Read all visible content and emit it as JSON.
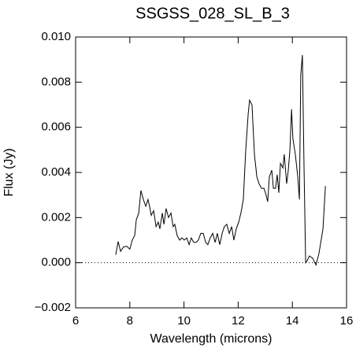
{
  "chart_data": {
    "type": "line",
    "title": "SSGSS_028_SL_B_3",
    "x_label": "Wavelength (microns)",
    "y_label": "Flux (Jy)",
    "xlim": [
      6,
      16
    ],
    "ylim": [
      -0.002,
      0.01
    ],
    "xticks": [
      6,
      8,
      10,
      12,
      14,
      16
    ],
    "yticks": [
      {
        "value": -0.002,
        "label": "−0.002"
      },
      {
        "value": 0,
        "label": "0.000"
      },
      {
        "value": 0.002,
        "label": "0.002"
      },
      {
        "value": 0.004,
        "label": "0.004"
      },
      {
        "value": 0.006,
        "label": "0.006"
      },
      {
        "value": 0.008,
        "label": "0.008"
      },
      {
        "value": 0.01,
        "label": "0.010"
      }
    ],
    "reference_line": 0,
    "color": "#000000",
    "x": [
      7.48,
      7.57,
      7.66,
      7.77,
      7.89,
      8.0,
      8.09,
      8.18,
      8.24,
      8.33,
      8.41,
      8.5,
      8.59,
      8.67,
      8.73,
      8.79,
      8.88,
      8.97,
      9.05,
      9.11,
      9.2,
      9.26,
      9.34,
      9.43,
      9.52,
      9.6,
      9.66,
      9.75,
      9.84,
      9.92,
      10.01,
      10.1,
      10.19,
      10.27,
      10.36,
      10.45,
      10.53,
      10.62,
      10.71,
      10.8,
      10.88,
      10.97,
      11.06,
      11.15,
      11.23,
      11.32,
      11.41,
      11.49,
      11.58,
      11.67,
      11.76,
      11.84,
      11.93,
      12.02,
      12.1,
      12.19,
      12.28,
      12.37,
      12.42,
      12.51,
      12.6,
      12.69,
      12.77,
      12.86,
      12.95,
      13.03,
      13.09,
      13.15,
      13.24,
      13.3,
      13.38,
      13.44,
      13.5,
      13.56,
      13.65,
      13.7,
      13.79,
      13.85,
      13.91,
      13.97,
      14.02,
      14.11,
      14.2,
      14.26,
      14.31,
      14.37,
      14.43,
      14.49,
      14.55,
      14.63,
      14.75,
      14.87,
      14.98,
      15.13,
      15.22
    ],
    "values": [
      0.00035,
      0.00094,
      0.0005,
      0.0007,
      0.00073,
      0.0006,
      0.001,
      0.0012,
      0.0019,
      0.0022,
      0.0032,
      0.0028,
      0.0025,
      0.0028,
      0.0025,
      0.0021,
      0.0023,
      0.0016,
      0.0018,
      0.0015,
      0.0022,
      0.0017,
      0.0024,
      0.002,
      0.0022,
      0.0016,
      0.0017,
      0.0012,
      0.001,
      0.0011,
      0.001,
      0.0011,
      0.0008,
      0.0011,
      0.0009,
      0.0009,
      0.001,
      0.0013,
      0.0013,
      0.0009,
      0.0008,
      0.0011,
      0.0013,
      0.0009,
      0.0013,
      0.0008,
      0.0013,
      0.0016,
      0.0017,
      0.0013,
      0.0016,
      0.001,
      0.0015,
      0.0018,
      0.0022,
      0.0028,
      0.005,
      0.0066,
      0.0072,
      0.007,
      0.0048,
      0.0038,
      0.0035,
      0.0033,
      0.0033,
      0.003,
      0.0027,
      0.0038,
      0.0041,
      0.0033,
      0.0033,
      0.0039,
      0.0031,
      0.0044,
      0.0042,
      0.0048,
      0.0035,
      0.0041,
      0.005,
      0.0068,
      0.0055,
      0.0048,
      0.0038,
      0.0028,
      0.0083,
      0.0092,
      0.0043,
      0.0,
      0.0001,
      0.0003,
      0.0002,
      -0.0001,
      0.0004,
      0.0015,
      0.0034
    ]
  }
}
